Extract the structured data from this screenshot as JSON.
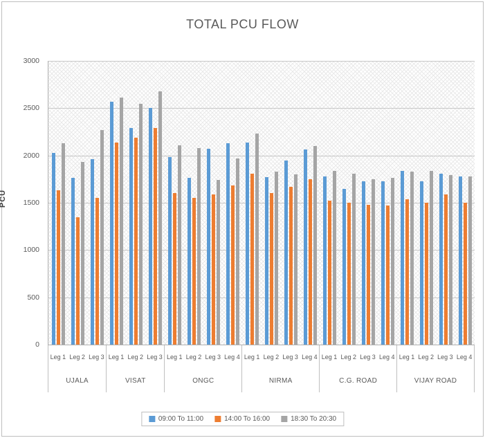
{
  "chart_data": {
    "type": "bar",
    "title": "TOTAL PCU FLOW",
    "ylabel": "PCU",
    "ylim": [
      0,
      3000
    ],
    "ytick_step": 500,
    "grid": true,
    "legend_position": "bottom",
    "plot_background": "diagonal-crosshatch",
    "groups": [
      {
        "name": "UJALA",
        "legs": [
          "Leg 1",
          "Leg 2",
          "Leg 3"
        ]
      },
      {
        "name": "VISAT",
        "legs": [
          "Leg 1",
          "Leg 2",
          "Leg 3"
        ]
      },
      {
        "name": "ONGC",
        "legs": [
          "Leg 1",
          "Leg 2",
          "Leg 3",
          "Leg 4"
        ]
      },
      {
        "name": "NIRMA",
        "legs": [
          "Leg 1",
          "Leg 2",
          "Leg 3",
          "Leg 4"
        ]
      },
      {
        "name": "C.G. ROAD",
        "legs": [
          "Leg 1",
          "Leg 2",
          "Leg 3",
          "Leg 4"
        ]
      },
      {
        "name": "VIJAY ROAD",
        "legs": [
          "Leg 1",
          "Leg 2",
          "Leg 3",
          "Leg 4"
        ]
      }
    ],
    "series": [
      {
        "name": "09:00 To 11:00",
        "color": "#5B9BD5",
        "values": [
          2030,
          1760,
          1960,
          2570,
          2290,
          2500,
          1980,
          1760,
          2070,
          2130,
          2140,
          1770,
          1950,
          2060,
          1780,
          1650,
          1730,
          1730,
          1840,
          1730,
          1810,
          1780
        ]
      },
      {
        "name": "14:00 To 16:00",
        "color": "#ED7D31",
        "values": [
          1630,
          1350,
          1550,
          2140,
          2190,
          2290,
          1600,
          1550,
          1590,
          1680,
          1810,
          1600,
          1670,
          1750,
          1520,
          1500,
          1480,
          1470,
          1540,
          1500,
          1590,
          1500
        ]
      },
      {
        "name": "18:30 To 20:30",
        "color": "#A5A5A5",
        "values": [
          2130,
          1930,
          2270,
          2610,
          2550,
          2680,
          2110,
          2080,
          1740,
          1970,
          2230,
          1830,
          1800,
          2100,
          1840,
          1810,
          1750,
          1760,
          1830,
          1840,
          1790,
          1780
        ]
      }
    ]
  }
}
